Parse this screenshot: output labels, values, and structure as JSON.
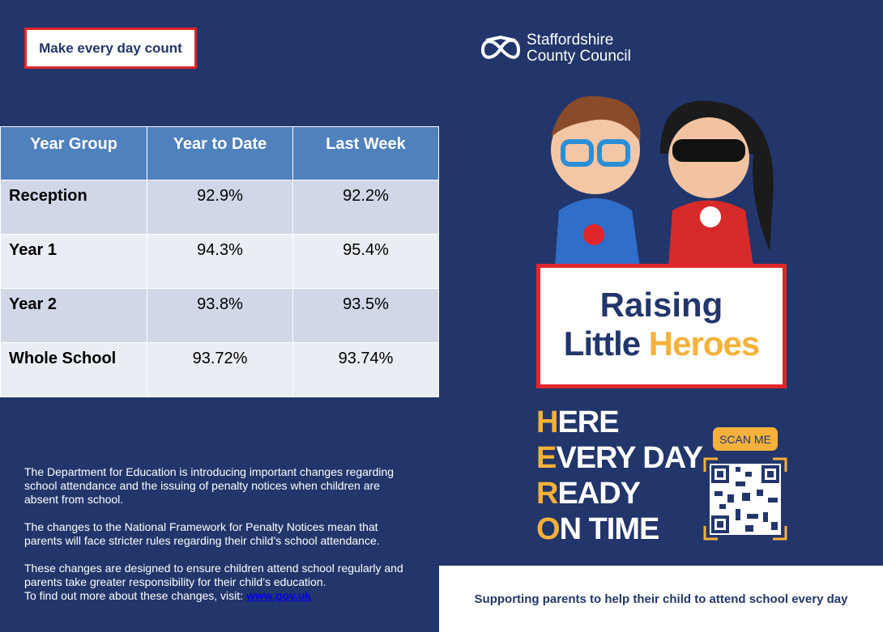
{
  "tagline": "Make every day count",
  "table": {
    "headers": [
      "Year Group",
      "Year to Date",
      "Last Week"
    ],
    "rows": [
      [
        "Reception",
        "92.9%",
        "92.2%"
      ],
      [
        "Year 1",
        "94.3%",
        "95.4%"
      ],
      [
        "Year 2",
        "93.8%",
        "93.5%"
      ],
      [
        "Whole School",
        "93.72%",
        "93.74%"
      ]
    ]
  },
  "body": {
    "p1": "The Department for Education is introducing important changes regarding school attendance and the issuing of penalty notices when children are absent from school.",
    "p2": "The changes to the National Framework for Penalty Notices mean that parents will face stricter rules regarding their child’s school attendance.",
    "p3": "These changes are designed to ensure children attend school regularly and parents take greater responsibility for their child’s education.",
    "p4": "To find out more about these changes, visit: ",
    "link": "www.gov.uk"
  },
  "logo": {
    "line1": "Staffordshire",
    "line2": "County Council",
    "icon": "stafford-knot-icon"
  },
  "title": {
    "line1": "Raising",
    "line2a": "Little ",
    "line2b": "Heroes"
  },
  "hero": [
    {
      "l": "H",
      "r": "ERE"
    },
    {
      "l": "E",
      "r": "VERY DAY"
    },
    {
      "l": "R",
      "r": "EADY"
    },
    {
      "l": "O",
      "r": "N TIME"
    }
  ],
  "scan_label": "SCAN ME",
  "footer": "Supporting parents to help their child to attend school every day",
  "colors": {
    "navy": "#22366b",
    "red": "#e0262b",
    "gold": "#f6b13b",
    "header_blue": "#4f81bd"
  }
}
